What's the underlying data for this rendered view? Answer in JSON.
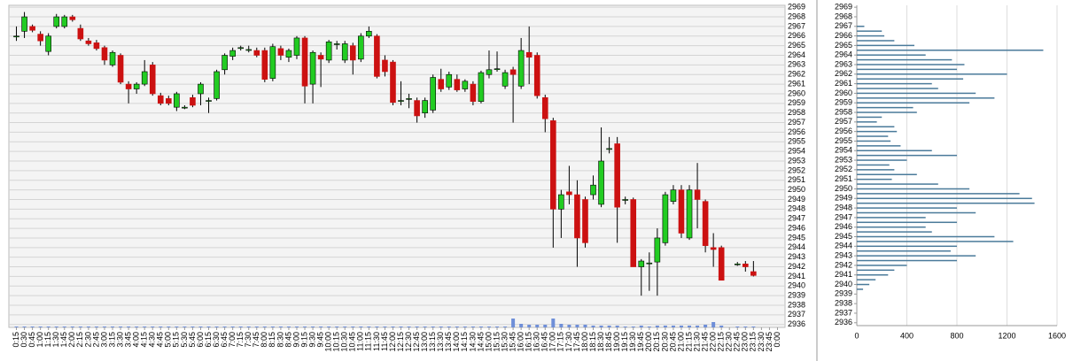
{
  "chart_data": [
    {
      "type": "candlestick",
      "categories": [
        "0:15",
        "0:30",
        "0:45",
        "1:00",
        "1:15",
        "1:30",
        "1:45",
        "2:00",
        "2:15",
        "2:30",
        "2:45",
        "3:00",
        "3:15",
        "3:30",
        "3:45",
        "4:00",
        "4:15",
        "4:30",
        "4:45",
        "5:00",
        "5:15",
        "5:30",
        "5:45",
        "6:00",
        "6:15",
        "6:30",
        "6:45",
        "7:00",
        "7:15",
        "7:30",
        "7:45",
        "8:00",
        "8:15",
        "8:30",
        "8:45",
        "9:00",
        "9:15",
        "9:30",
        "9:45",
        "10:00",
        "10:15",
        "10:30",
        "10:45",
        "11:00",
        "11:15",
        "11:30",
        "11:45",
        "12:00",
        "12:15",
        "12:30",
        "12:45",
        "13:00",
        "13:15",
        "13:30",
        "13:45",
        "14:00",
        "14:15",
        "14:30",
        "14:45",
        "15:00",
        "15:15",
        "15:30",
        "15:45",
        "16:00",
        "16:15",
        "16:30",
        "16:45",
        "17:00",
        "17:15",
        "17:30",
        "17:45",
        "18:00",
        "18:15",
        "18:30",
        "18:45",
        "19:00",
        "19:15",
        "19:30",
        "19:45",
        "20:00",
        "20:15",
        "20:30",
        "20:45",
        "21:00",
        "21:15",
        "21:30",
        "21:45",
        "22:00",
        "22:15",
        "22:30",
        "22:45",
        "23:00",
        "23:15",
        "23:30",
        "23:45",
        "0:00"
      ],
      "open": [
        2966,
        2966.5,
        2967,
        2966.2,
        2964.4,
        2967,
        2967,
        2968,
        2966.8,
        2965.5,
        2965.3,
        2964.8,
        2963,
        2964,
        2961,
        2960.5,
        2961,
        2963,
        2959.8,
        2959.5,
        2958.6,
        2958.6,
        2959.6,
        2960,
        2959.3,
        2959.5,
        2962.5,
        2963.9,
        2964.8,
        2964.6,
        2964.5,
        2964.5,
        2961.6,
        2964.7,
        2963.8,
        2964,
        2965.8,
        2961,
        2964,
        2963.5,
        2965.2,
        2963.5,
        2965,
        2963.6,
        2966,
        2966,
        2963.5,
        2963.3,
        2959.3,
        2959.5,
        2959.3,
        2958,
        2958.3,
        2961.5,
        2960.7,
        2961.5,
        2960.5,
        2961,
        2959.2,
        2962,
        2962.6,
        2960.8,
        2962.5,
        2960.8,
        2964.3,
        2964,
        2959.6,
        2957.2,
        2948,
        2949.8,
        2949.5,
        2949,
        2949.5,
        2948.5,
        2954.3,
        2954.8,
        2949,
        2949,
        2942,
        2942.4,
        2942.5,
        2944.5,
        2948.8,
        2950,
        2945,
        2950,
        2948.8,
        2944,
        2944,
        null,
        2942.3,
        2942.3,
        2941.5,
        null,
        null,
        null
      ],
      "high": [
        2967,
        2968.5,
        2967.2,
        2966.5,
        2966.3,
        2968.3,
        2968.2,
        2968.2,
        2967.2,
        2965.8,
        2965.6,
        2965,
        2964.5,
        2964.2,
        2961.3,
        2961.2,
        2963.5,
        2963.3,
        2960.1,
        2959.8,
        2960.2,
        2958.8,
        2959.9,
        2961.2,
        2959.6,
        2962.5,
        2964.2,
        2964.8,
        2965,
        2965,
        2964.8,
        2964.8,
        2965.2,
        2965,
        2964.7,
        2966,
        2966,
        2964.5,
        2964.3,
        2965.6,
        2965.5,
        2965.5,
        2965.3,
        2966.3,
        2967,
        2966.2,
        2964,
        2963.5,
        2961.3,
        2960,
        2959.6,
        2959.6,
        2962,
        2962.6,
        2962.3,
        2962,
        2961.5,
        2961.3,
        2962.4,
        2964.5,
        2964.4,
        2962.5,
        2962.8,
        2965.8,
        2967,
        2964.3,
        2959.9,
        2957.5,
        2950,
        2952.5,
        2951,
        2949.3,
        2951.5,
        2956.5,
        2955.5,
        2955.5,
        2949.3,
        2949.2,
        2942.8,
        2943.5,
        2946,
        2949.8,
        2950.5,
        2950.5,
        2950.5,
        2952.8,
        2949,
        2945.5,
        2944.2,
        null,
        2942.5,
        2942.6,
        2942.6,
        null,
        null,
        null
      ],
      "low": [
        2965.5,
        2965.8,
        2966.4,
        2965,
        2964,
        2966.8,
        2966.8,
        2967.5,
        2965.5,
        2965,
        2964.5,
        2963,
        2962.8,
        2961,
        2959,
        2960,
        2960.8,
        2959.8,
        2958.8,
        2958.8,
        2958.2,
        2958.4,
        2958.6,
        2958.8,
        2958,
        2959.3,
        2962,
        2963.5,
        2964.5,
        2964.3,
        2963.8,
        2961.2,
        2961.3,
        2963.5,
        2963.3,
        2963.6,
        2959,
        2959,
        2960.7,
        2963.2,
        2964.6,
        2963.2,
        2962,
        2963.3,
        2965.8,
        2961.6,
        2961.8,
        2958.8,
        2958.8,
        2958.5,
        2957,
        2957.5,
        2958,
        2960.2,
        2960.4,
        2960.2,
        2960.2,
        2958.8,
        2959,
        2961.6,
        2962.3,
        2960.5,
        2957,
        2960.5,
        2961,
        2959.5,
        2956,
        2944,
        2945,
        2948.5,
        2942,
        2944,
        2949,
        2948.2,
        2953.8,
        2944.5,
        2948.5,
        2942,
        2939,
        2939.5,
        2939,
        2944.2,
        2948.5,
        2945,
        2944.8,
        2946,
        2943.5,
        2942,
        2940.6,
        null,
        2942.1,
        2941.5,
        2941,
        null,
        null,
        null
      ],
      "close": [
        2966,
        2968,
        2966.6,
        2965.5,
        2966,
        2968,
        2968,
        2967.7,
        2965.7,
        2965.2,
        2964.7,
        2963.5,
        2964.3,
        2961.2,
        2960.5,
        2961,
        2962.3,
        2960,
        2959,
        2959,
        2960,
        2958.6,
        2958.8,
        2961,
        2959.3,
        2962.3,
        2964,
        2964.5,
        2964.8,
        2964.6,
        2964,
        2961.5,
        2964.9,
        2964,
        2964.5,
        2965.8,
        2960.8,
        2964.3,
        2963.6,
        2965.4,
        2965.2,
        2965.2,
        2963.5,
        2966,
        2966.5,
        2961.8,
        2962.3,
        2959.1,
        2959.3,
        2959.5,
        2957.7,
        2959.3,
        2961.7,
        2960.5,
        2962,
        2960.4,
        2961.3,
        2959.2,
        2962.2,
        2962.5,
        2962.6,
        2962.2,
        2962,
        2964.5,
        2963.8,
        2959.8,
        2957.4,
        2948,
        2949.5,
        2949.5,
        2945,
        2944.5,
        2950.5,
        2953,
        2954.3,
        2948.2,
        2949,
        2942,
        2942.6,
        2942.4,
        2945,
        2949.5,
        2950,
        2945.5,
        2950,
        2949,
        2944.2,
        2943.8,
        2940.6,
        null,
        2942.3,
        2942,
        2941.1,
        null,
        null,
        null
      ],
      "volume": [
        1,
        1,
        1,
        1,
        1,
        1,
        1,
        1,
        1,
        1,
        1,
        1,
        1,
        1,
        1,
        1,
        1,
        1,
        1,
        1,
        1,
        1,
        1,
        1,
        1,
        1,
        1,
        1,
        1,
        1,
        1,
        1,
        1,
        1,
        1,
        1,
        1,
        1,
        1,
        1,
        1,
        1,
        1,
        1,
        1,
        1,
        1,
        1,
        1,
        1,
        1,
        1,
        1,
        1,
        1,
        1,
        1,
        1,
        1,
        1,
        1,
        1,
        10,
        4,
        3,
        3,
        3,
        10,
        4,
        3,
        3,
        3,
        2,
        2,
        2,
        2,
        1,
        1,
        2,
        1,
        2,
        2,
        2,
        2,
        2,
        2,
        3,
        6,
        2,
        null,
        1,
        1,
        1,
        null,
        null,
        null
      ],
      "up_color": "#22cc22",
      "down_color": "#cc1111",
      "volume_color": "#6f8fd8",
      "ylim": [
        2935.7,
        2969.2
      ],
      "yticks": [
        2936,
        2937,
        2938,
        2939,
        2940,
        2941,
        2942,
        2943,
        2944,
        2945,
        2946,
        2947,
        2948,
        2949,
        2950,
        2951,
        2952,
        2953,
        2954,
        2955,
        2956,
        2957,
        2958,
        2959,
        2960,
        2961,
        2962,
        2963,
        2964,
        2965,
        2966,
        2967,
        2968,
        2969
      ],
      "grid": true
    },
    {
      "type": "barh",
      "y": [
        2967,
        2966.5,
        2966,
        2965.5,
        2965,
        2964.5,
        2964,
        2963.5,
        2963,
        2962.5,
        2962,
        2961.5,
        2961,
        2960.5,
        2960,
        2959.5,
        2959,
        2958.5,
        2958,
        2957.5,
        2957,
        2956.5,
        2956,
        2955.5,
        2955,
        2954.5,
        2954,
        2953.5,
        2953,
        2952.5,
        2952,
        2951.5,
        2951,
        2950.5,
        2950,
        2949.5,
        2949,
        2948.5,
        2948,
        2947.5,
        2947,
        2946.5,
        2946,
        2945.5,
        2945,
        2944.5,
        2944,
        2943.5,
        2943,
        2942.5,
        2942,
        2941.5,
        2941,
        2940.5,
        2940,
        2939.5
      ],
      "values": [
        60,
        200,
        220,
        300,
        460,
        1490,
        550,
        760,
        860,
        800,
        1200,
        850,
        600,
        650,
        950,
        1100,
        900,
        450,
        480,
        200,
        160,
        300,
        320,
        250,
        270,
        350,
        600,
        800,
        400,
        260,
        300,
        480,
        280,
        650,
        900,
        1300,
        1400,
        1420,
        800,
        950,
        550,
        800,
        550,
        600,
        1100,
        1250,
        800,
        750,
        950,
        800,
        400,
        300,
        250,
        150,
        100,
        50
      ],
      "color": "#4a7a9a",
      "ylim": [
        2935.7,
        2969.2
      ],
      "yticks": [
        2936,
        2937,
        2938,
        2939,
        2940,
        2941,
        2942,
        2943,
        2944,
        2945,
        2946,
        2947,
        2948,
        2949,
        2950,
        2951,
        2952,
        2953,
        2954,
        2955,
        2956,
        2957,
        2958,
        2959,
        2960,
        2961,
        2962,
        2963,
        2964,
        2965,
        2966,
        2967,
        2968,
        2969
      ],
      "xlim": [
        0,
        1600
      ],
      "xticks": [
        0,
        400,
        800,
        1200,
        1600
      ],
      "grid": true
    }
  ]
}
